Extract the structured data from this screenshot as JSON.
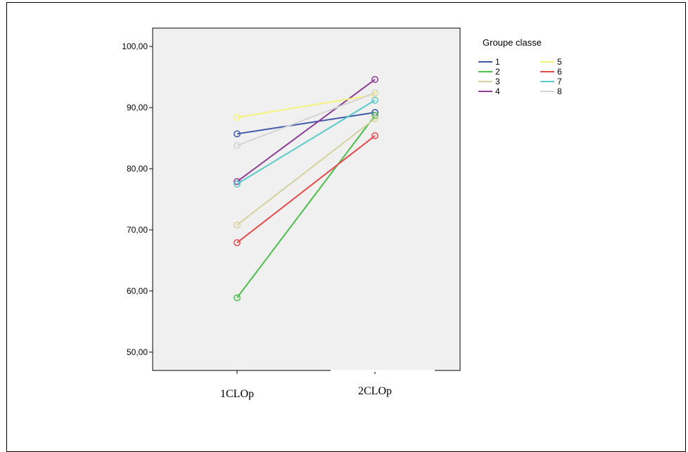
{
  "chart_data": {
    "type": "line",
    "title": "",
    "xlabel": "",
    "ylabel": "",
    "categories": [
      "1CLOp",
      "2CLOp"
    ],
    "ylim": [
      47,
      103
    ],
    "yticks": [
      50,
      60,
      70,
      80,
      90,
      100
    ],
    "ytick_labels": [
      "50,00",
      "60,00",
      "70,00",
      "80,00",
      "90,00",
      "100,00"
    ],
    "grid": false,
    "legend": {
      "title": "Groupe classe",
      "position": "right"
    },
    "series": [
      {
        "name": "1",
        "color": "#3f5aa8",
        "values": [
          85.7,
          89.2
        ]
      },
      {
        "name": "2",
        "color": "#4dbd4d",
        "values": [
          58.9,
          88.7
        ]
      },
      {
        "name": "3",
        "color": "#d6d2a0",
        "values": [
          70.8,
          88.2
        ]
      },
      {
        "name": "4",
        "color": "#8e3c96",
        "values": [
          77.9,
          94.6
        ]
      },
      {
        "name": "5",
        "color": "#f7f27a",
        "values": [
          88.4,
          92.1
        ]
      },
      {
        "name": "6",
        "color": "#e84a4a",
        "values": [
          67.9,
          85.4
        ]
      },
      {
        "name": "7",
        "color": "#5cc9c9",
        "values": [
          77.5,
          91.2
        ]
      },
      {
        "name": "8",
        "color": "#d4d4d4",
        "values": [
          83.8,
          92.4
        ]
      }
    ]
  }
}
